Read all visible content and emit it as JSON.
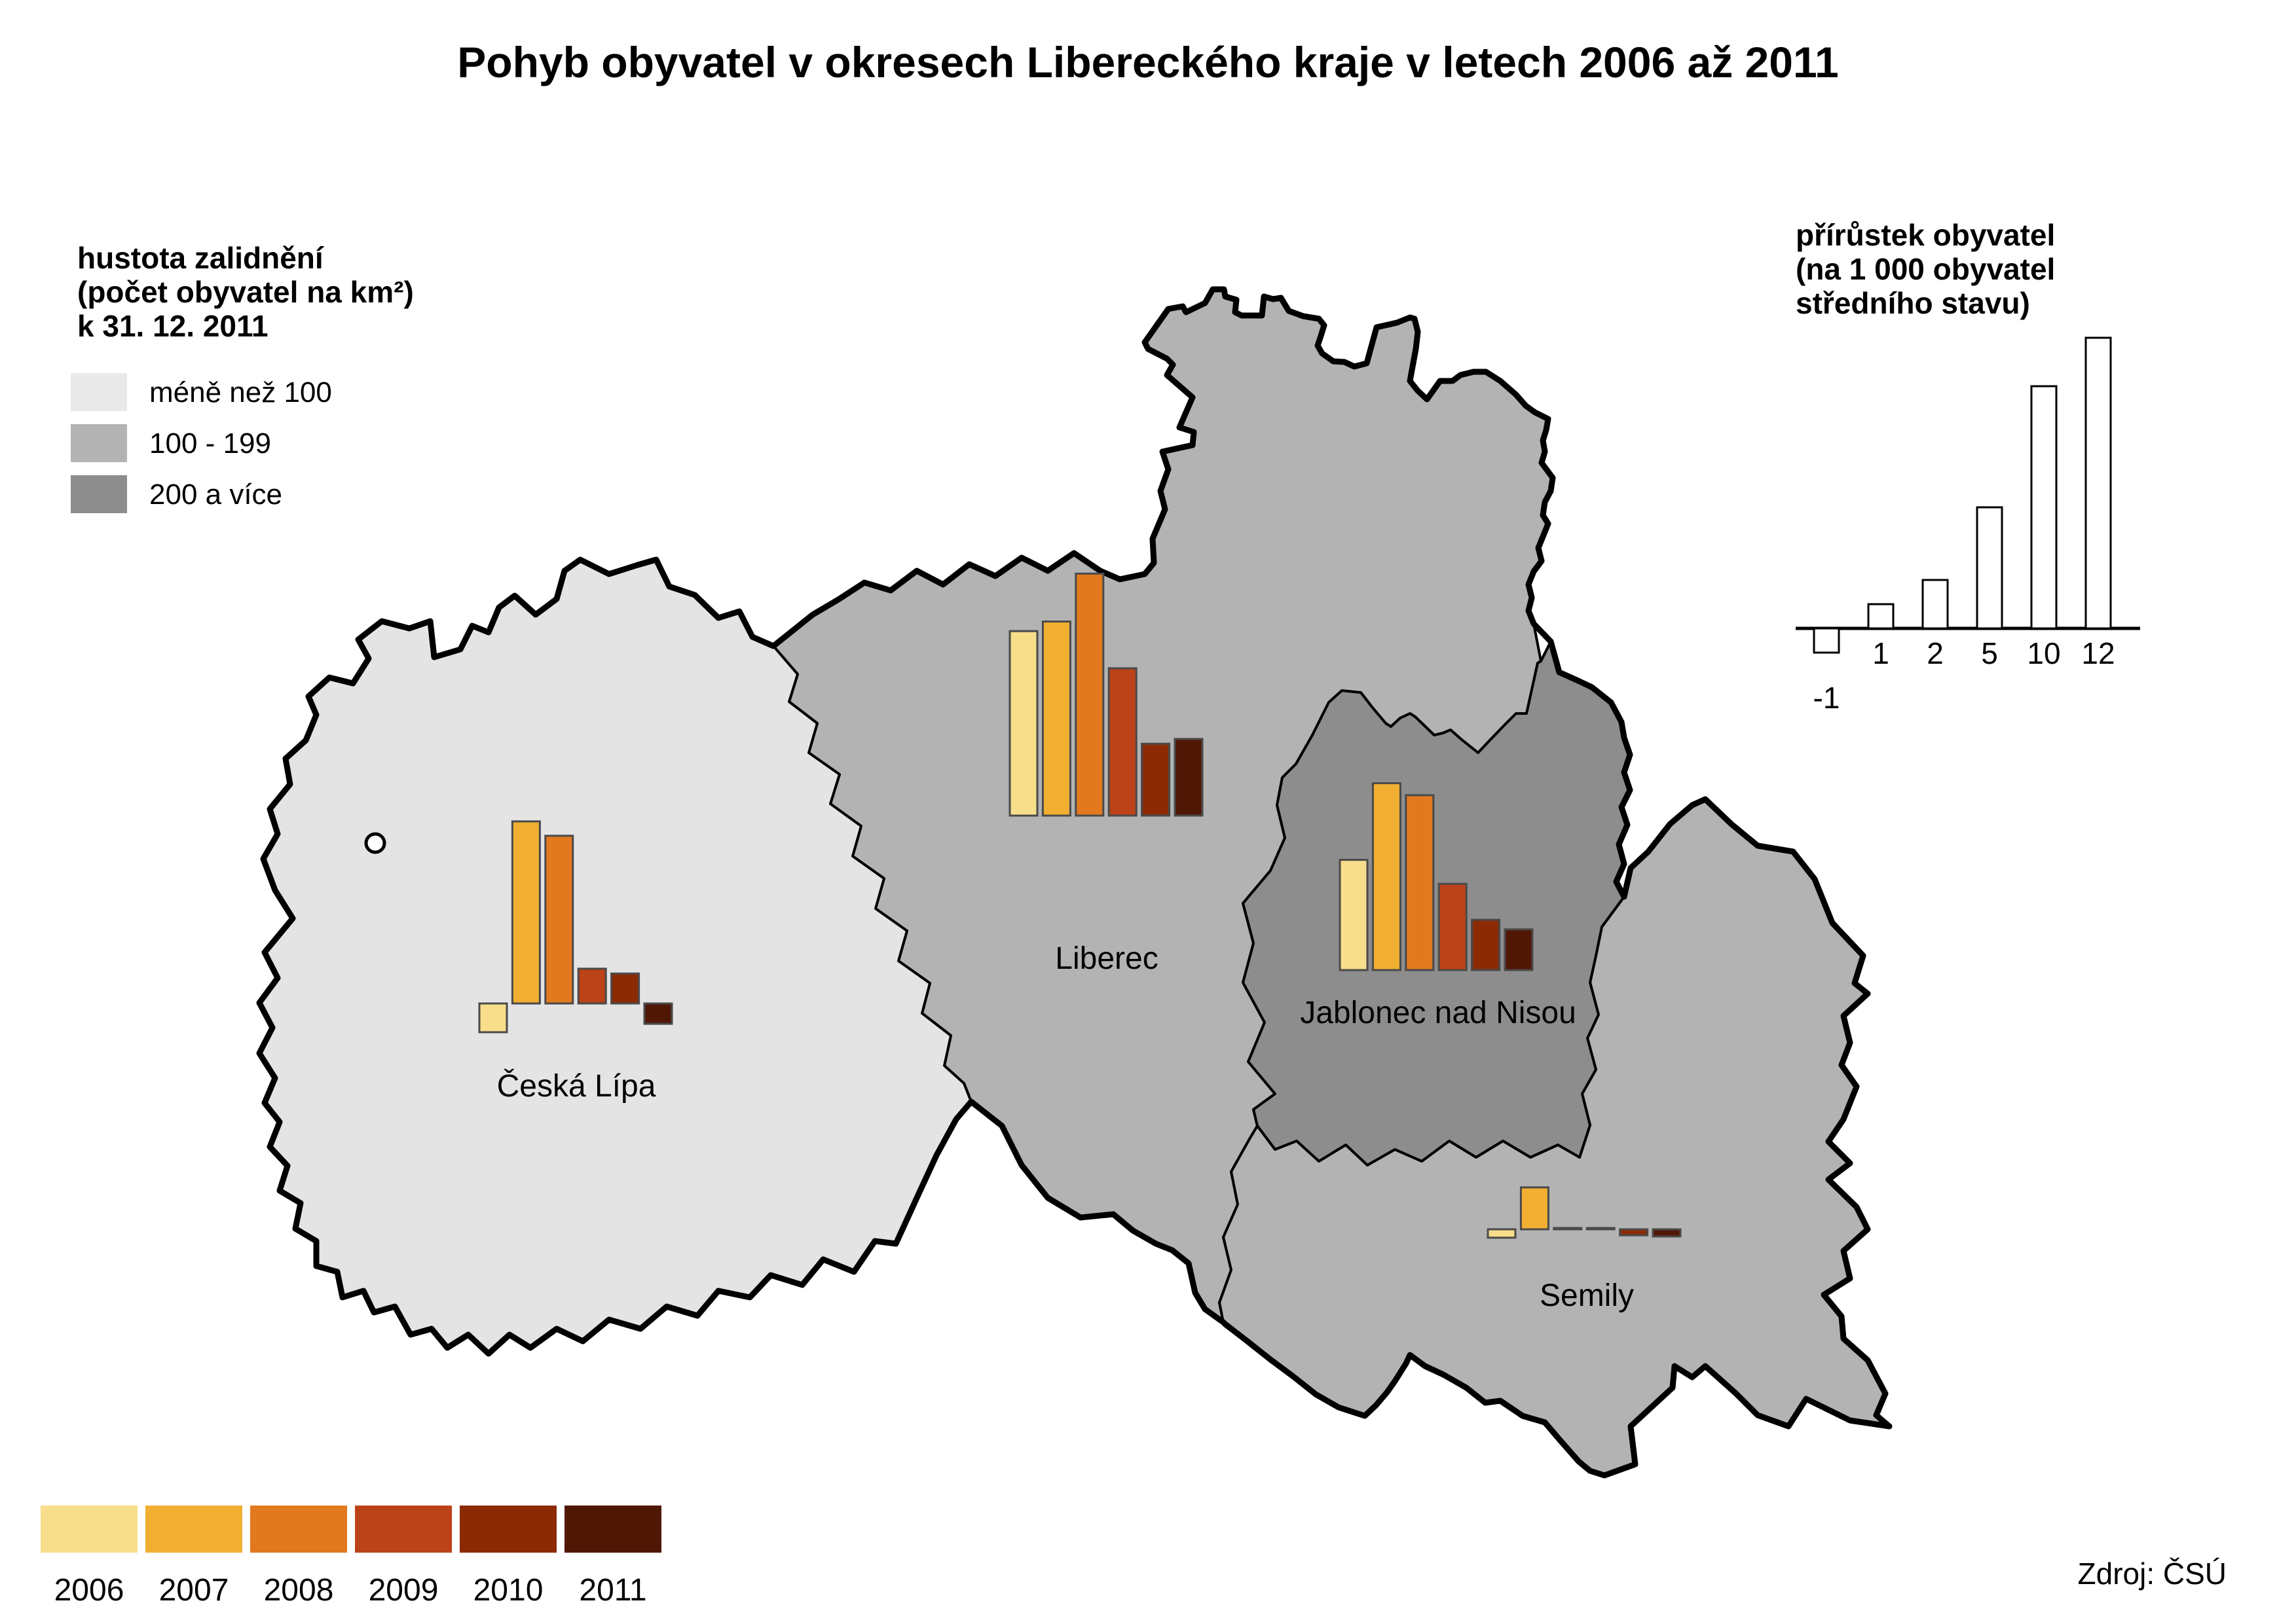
{
  "title": "Pohyb obyvatel v okresech Libereckého kraje v letech 2006 až 2011",
  "density_legend": {
    "title_lines": [
      "hustota zalidnění",
      "(počet obyvatel na km²)",
      "k 31. 12. 2011"
    ],
    "classes": [
      {
        "label": "méně než 100",
        "color": "#E9E9E9"
      },
      {
        "label": "100 - 199",
        "color": "#B3B3B3"
      },
      {
        "label": "200 a více",
        "color": "#8D8D8D"
      }
    ]
  },
  "growth_legend": {
    "title_lines": [
      "přírůstek obyvatel",
      "(na 1 000 obyvatel",
      "středního stavu)"
    ]
  },
  "years": [
    {
      "year": "2006",
      "color": "#F8DE8B"
    },
    {
      "year": "2007",
      "color": "#F1AF32"
    },
    {
      "year": "2008",
      "color": "#E2791F"
    },
    {
      "year": "2009",
      "color": "#BC4217"
    },
    {
      "year": "2010",
      "color": "#8C2A04"
    },
    {
      "year": "2011",
      "color": "#511705"
    }
  ],
  "source": "Zdroj: ČSÚ",
  "map": {
    "background": "#FFFFFF",
    "border_color": "#000000",
    "districts": [
      {
        "id": "ceska-lipa",
        "name": "Česká Lípa",
        "fill": "#E4E4E4",
        "density_class": "méně než 100"
      },
      {
        "id": "liberec",
        "name": "Liberec",
        "fill": "#B3B3B3",
        "density_class": "100 - 199"
      },
      {
        "id": "jablonec-nad-nisou",
        "name": "Jablonec nad Nisou",
        "fill": "#8D8D8D",
        "density_class": "200 a více"
      },
      {
        "id": "semily",
        "name": "Semily",
        "fill": "#B3B3B3",
        "density_class": "100 - 199"
      }
    ]
  },
  "chart_data": [
    {
      "type": "bar",
      "role": "scale-legend",
      "title": "přírůstek obyvatel (na 1 000 obyvatel středního stavu)",
      "categories": [
        "-1",
        "1",
        "2",
        "5",
        "10",
        "12"
      ],
      "values": [
        -1,
        1,
        2,
        5,
        10,
        12
      ],
      "bar_fill": "#FFFFFF",
      "ylim": [
        -1.5,
        12.5
      ]
    },
    {
      "type": "bar",
      "role": "district-chart",
      "id": "ceska-lipa",
      "district": "Česká Lípa",
      "categories": [
        "2006",
        "2007",
        "2008",
        "2009",
        "2010",
        "2011"
      ],
      "values": [
        -1.2,
        7.6,
        7.0,
        1.45,
        1.25,
        -0.85
      ]
    },
    {
      "type": "bar",
      "role": "district-chart",
      "id": "liberec",
      "district": "Liberec",
      "categories": [
        "2006",
        "2007",
        "2008",
        "2009",
        "2010",
        "2011"
      ],
      "values": [
        7.7,
        8.1,
        10.1,
        6.15,
        3.0,
        3.2
      ]
    },
    {
      "type": "bar",
      "role": "district-chart",
      "id": "jablonec-nad-nisou",
      "district": "Jablonec nad Nisou",
      "categories": [
        "2006",
        "2007",
        "2008",
        "2009",
        "2010",
        "2011"
      ],
      "values": [
        4.6,
        7.8,
        7.3,
        3.6,
        2.1,
        1.7
      ]
    },
    {
      "type": "bar",
      "role": "district-chart",
      "id": "semily",
      "district": "Semily",
      "categories": [
        "2006",
        "2007",
        "2008",
        "2009",
        "2010",
        "2011"
      ],
      "values": [
        -0.35,
        1.75,
        0.05,
        0.05,
        -0.25,
        -0.3
      ]
    }
  ]
}
